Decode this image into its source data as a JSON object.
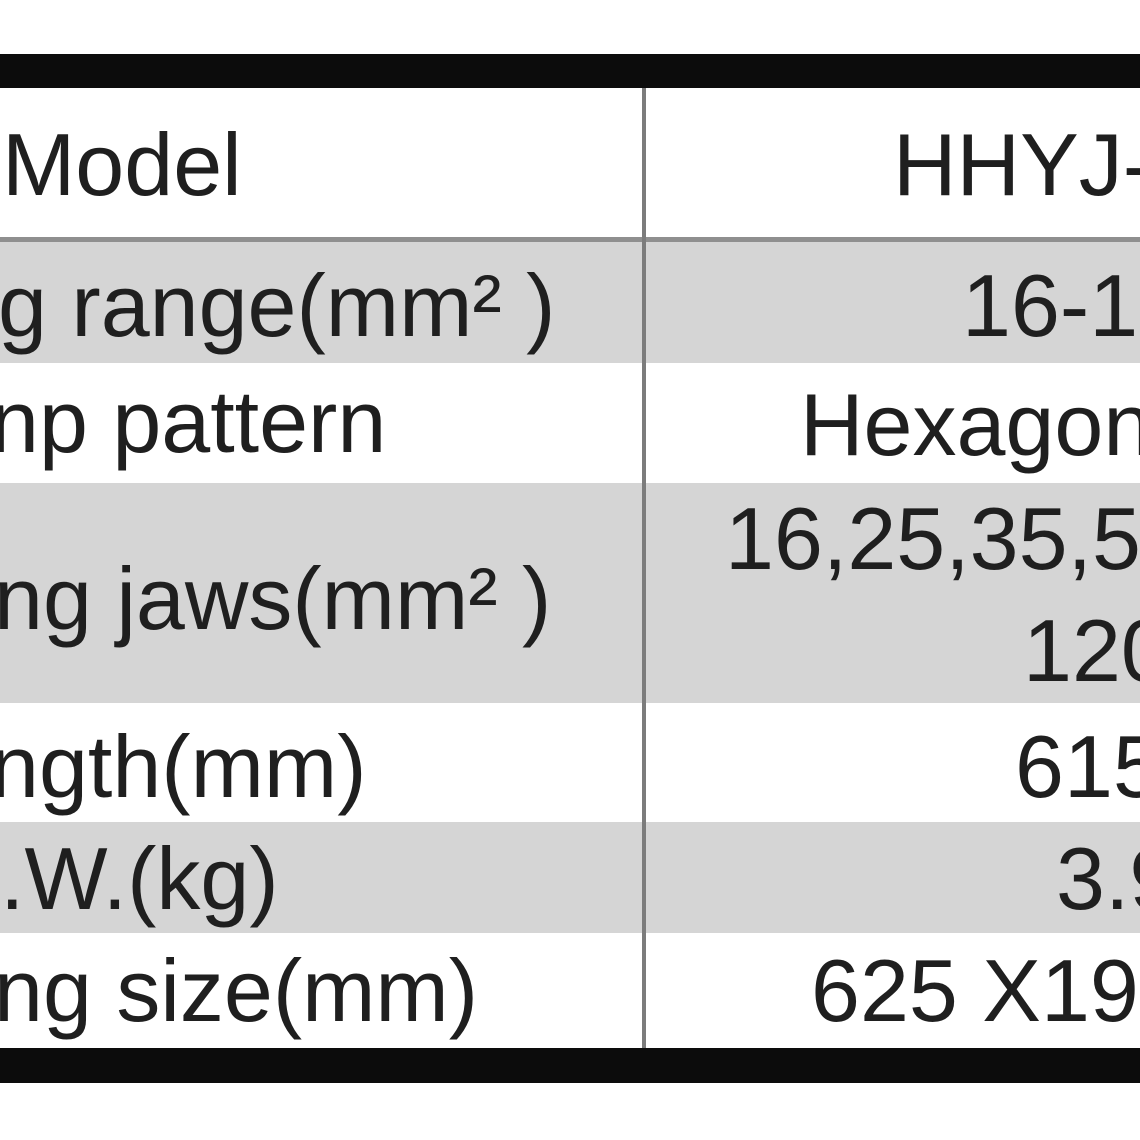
{
  "table": {
    "header": {
      "label": "Model",
      "value": "HHYJ-"
    },
    "rows": [
      {
        "label": "g range(mm² )",
        "value": "16-1",
        "shaded": true
      },
      {
        "label": "np pattern",
        "value": "Hexagon",
        "shaded": false
      },
      {
        "label": "ng jaws(mm² )",
        "value_lines": [
          "16,25,35,5",
          "120"
        ],
        "shaded": true
      },
      {
        "label": "ngth(mm)",
        "value": "615",
        "shaded": false
      },
      {
        "label": ".W.(kg)",
        "value": "3.9",
        "shaded": true
      },
      {
        "label": "ng size(mm)",
        "value": "625 X19",
        "shaded": false
      }
    ],
    "colors": {
      "shaded_row": "#d5d5d5",
      "border_bar": "#0c0c0c",
      "divider": "#7c7c7c",
      "separator_line": "#8f8f8f",
      "text": "#1f1f1f"
    }
  }
}
